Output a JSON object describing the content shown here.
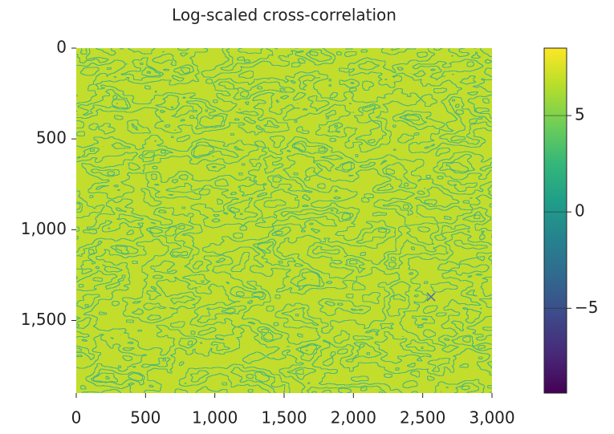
{
  "chart_data": {
    "type": "heatmap",
    "title": "Log-scaled cross-correlation",
    "xlim": [
      0,
      3000
    ],
    "xticks": [
      0,
      500,
      {
        "value": 1000,
        "label": "1,000"
      },
      {
        "value": 1500,
        "label": "1,500"
      },
      {
        "value": 2000,
        "label": "2,000"
      },
      {
        "value": 2500,
        "label": "2,500"
      },
      {
        "value": 3000,
        "label": "3,000"
      }
    ],
    "ylim": [
      0,
      1900
    ],
    "y_inverted": true,
    "yticks": [
      0,
      500,
      {
        "value": 1000,
        "label": "1,000"
      },
      {
        "value": 1500,
        "label": "1,500"
      }
    ],
    "colormap": "viridis",
    "clim": [
      -9.4,
      8.5
    ],
    "cticks": [
      {
        "value": -5,
        "label": "−5"
      },
      0,
      5
    ],
    "marker": {
      "x": 2560,
      "y": 1370,
      "color": "#4f6fa8"
    }
  }
}
